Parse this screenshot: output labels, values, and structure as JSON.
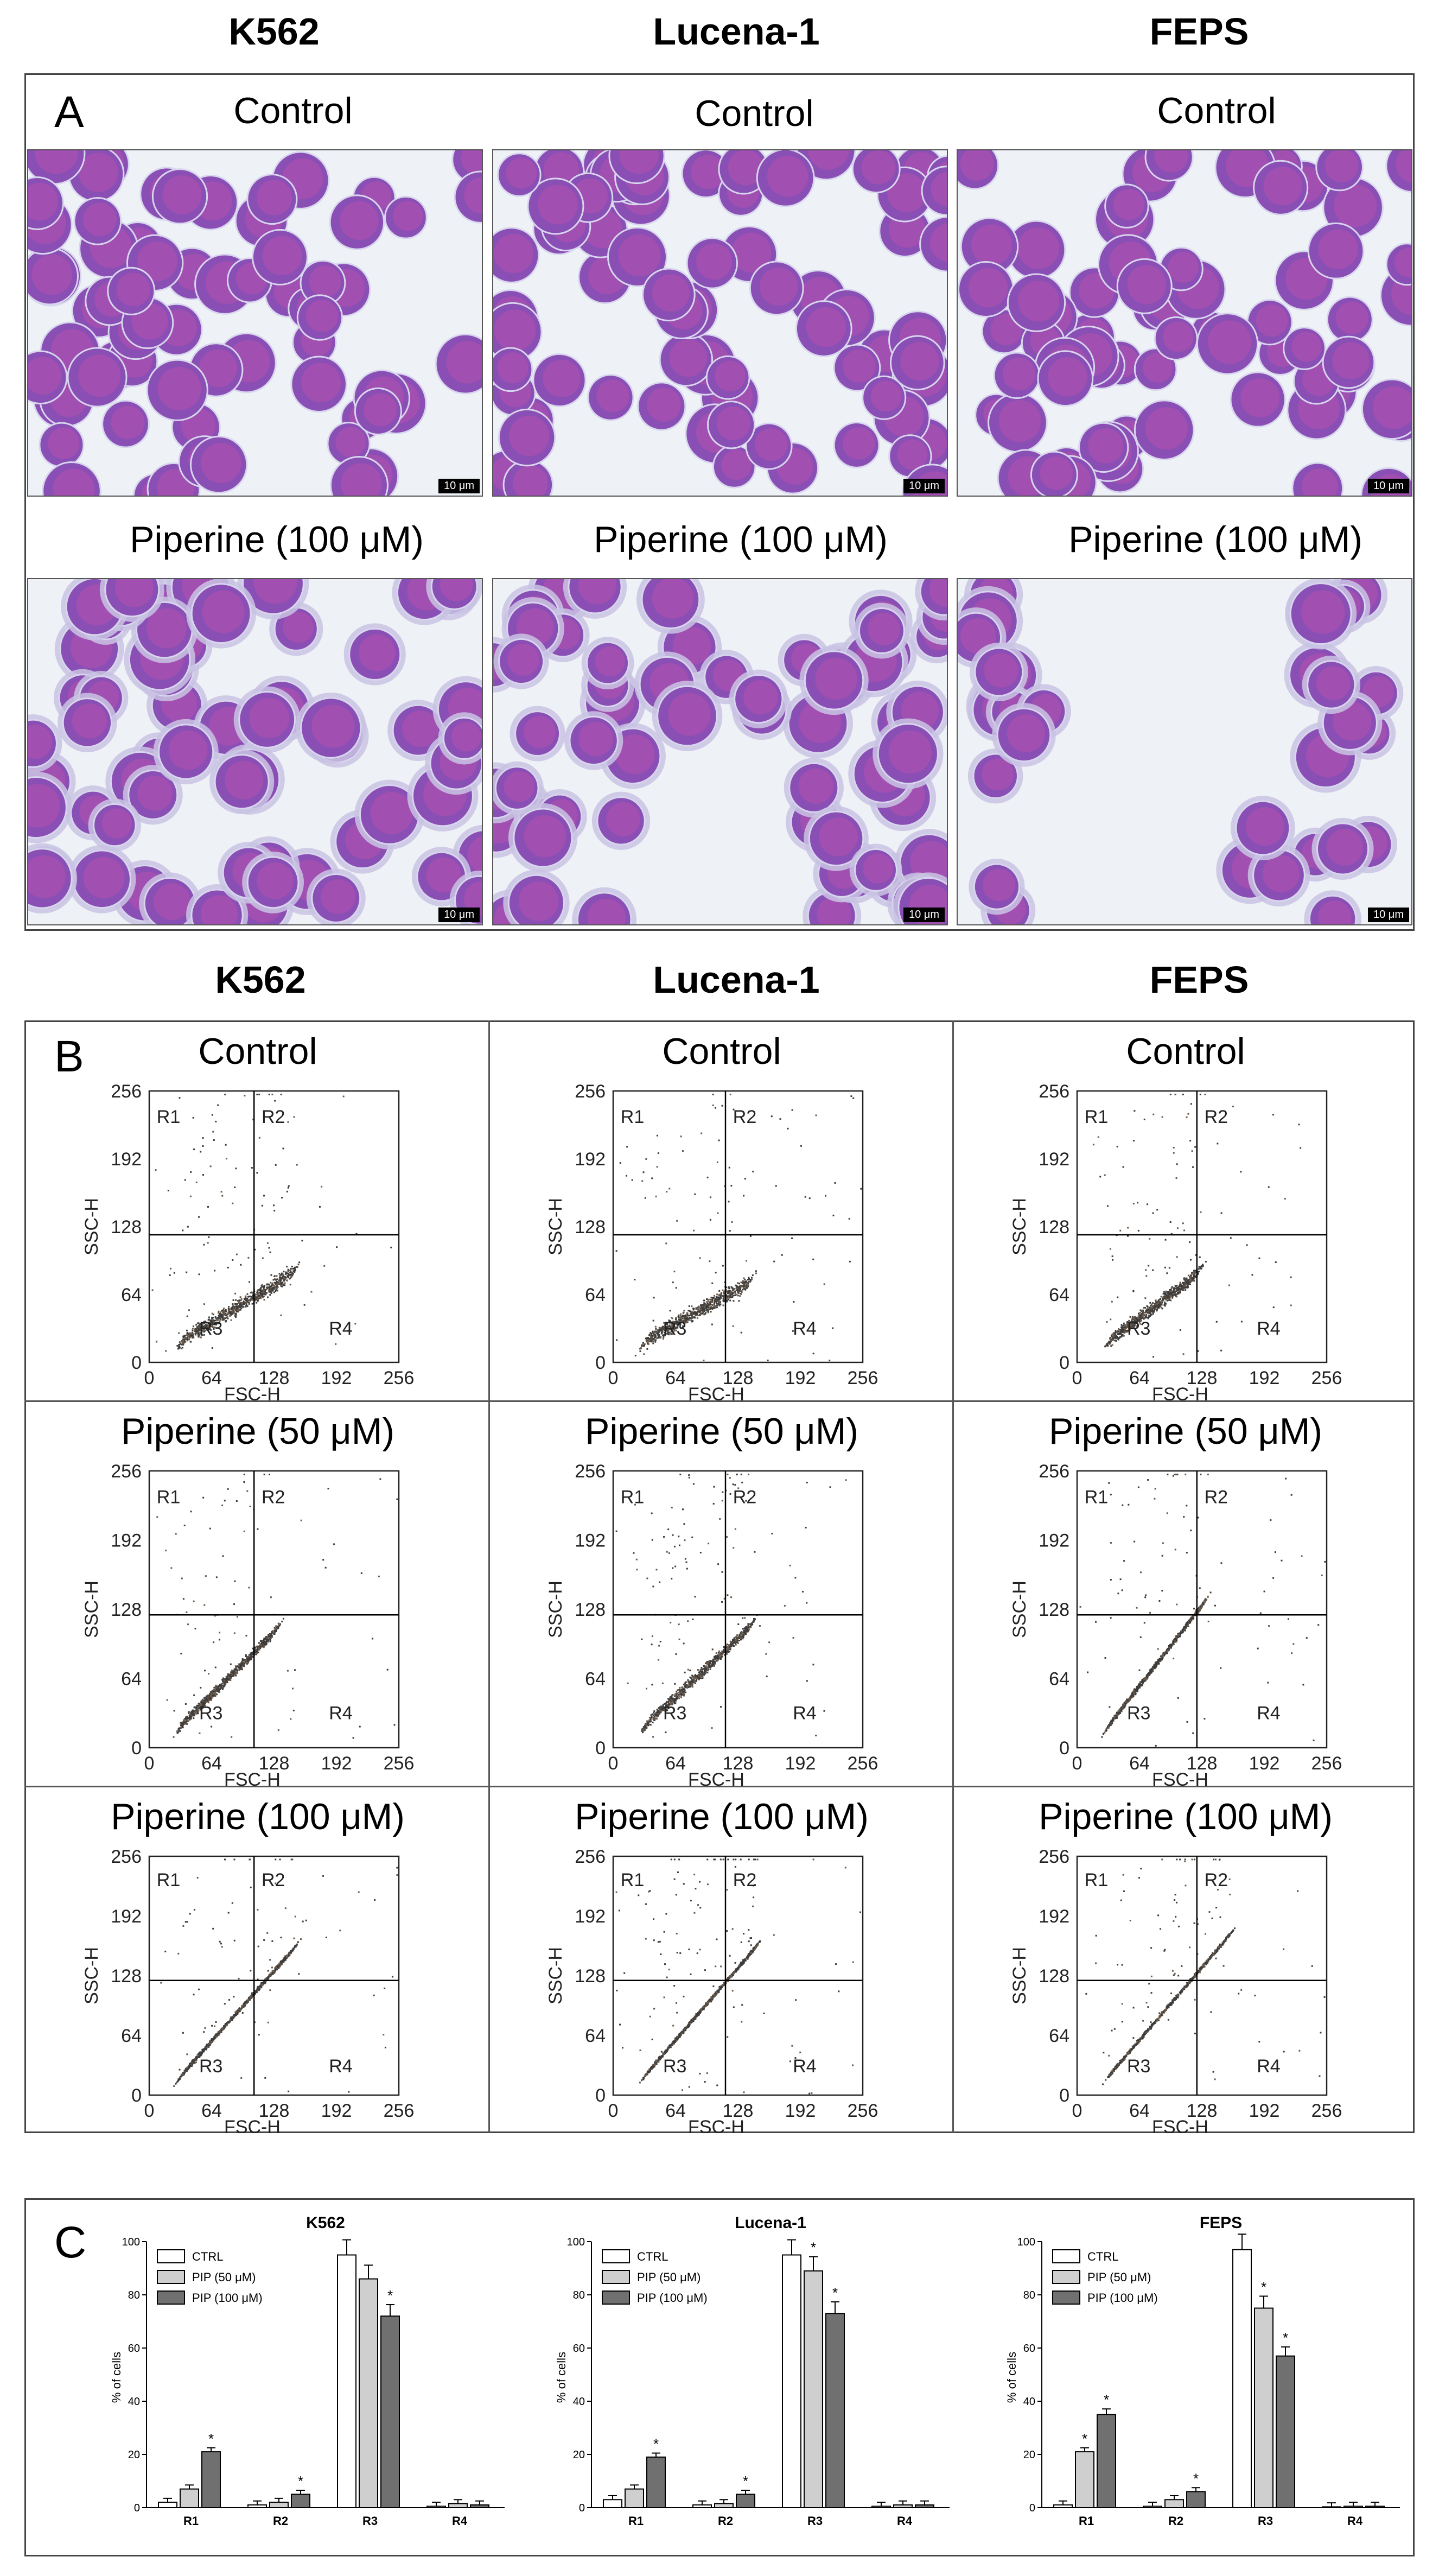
{
  "panel_a": {
    "letter": "A",
    "columns": [
      "K562",
      "Lucena-1",
      "FEPS"
    ],
    "rows": [
      {
        "labels": [
          "Control",
          "Control",
          "Control"
        ]
      },
      {
        "labels": [
          "Piperine (100 μM)",
          "Piperine (100 μM)",
          "Piperine (100 μM)"
        ]
      }
    ],
    "scale_bar": "10 μm"
  },
  "panel_b": {
    "letter": "B",
    "columns": [
      "K562",
      "Lucena-1",
      "FEPS"
    ],
    "rows": [
      {
        "labels": [
          "Control",
          "Control",
          "Control"
        ]
      },
      {
        "labels": [
          "Piperine (50 μM)",
          "Piperine (50 μM)",
          "Piperine (50 μM)"
        ]
      },
      {
        "labels": [
          "Piperine (100 μM)",
          "Piperine (100 μM)",
          "Piperine (100 μM)"
        ]
      }
    ],
    "xlabel": "FSC-H",
    "ylabel": "SSC-H",
    "ticks": [
      "0",
      "64",
      "128",
      "192",
      "256"
    ],
    "regions": [
      "R1",
      "R2",
      "R3",
      "R4"
    ]
  },
  "panel_c": {
    "letter": "C",
    "legend": [
      "CTRL",
      "PIP (50 μM)",
      "PIP (100 μM)"
    ],
    "ylabel": "% of cells",
    "yticks": [
      "0",
      "20",
      "40",
      "60",
      "80",
      "100"
    ],
    "colors": {
      "ctrl": "#ffffff",
      "pip50": "#cfcfcf",
      "pip100": "#707070"
    }
  },
  "chart_data": [
    {
      "type": "bar",
      "title": "K562",
      "categories": [
        "R1",
        "R2",
        "R3",
        "R4"
      ],
      "ylabel": "% of cells",
      "ylim": [
        0,
        100
      ],
      "series": [
        {
          "name": "CTRL",
          "values": [
            2,
            1,
            95,
            0.5
          ]
        },
        {
          "name": "PIP (50 μM)",
          "values": [
            7,
            2,
            86,
            1.5
          ]
        },
        {
          "name": "PIP (100 μM)",
          "values": [
            21,
            5,
            72,
            1
          ]
        }
      ],
      "significant": {
        "PIP (100 μM)": [
          "R1",
          "R2",
          "R3"
        ]
      }
    },
    {
      "type": "bar",
      "title": "Lucena-1",
      "categories": [
        "R1",
        "R2",
        "R3",
        "R4"
      ],
      "ylabel": "% of cells",
      "ylim": [
        0,
        100
      ],
      "series": [
        {
          "name": "CTRL",
          "values": [
            3,
            1,
            95,
            0.5
          ]
        },
        {
          "name": "PIP (50 μM)",
          "values": [
            7,
            1.5,
            89,
            1
          ]
        },
        {
          "name": "PIP (100 μM)",
          "values": [
            19,
            5,
            73,
            1
          ]
        }
      ],
      "significant": {
        "PIP (50 μM)": [
          "R3"
        ],
        "PIP (100 μM)": [
          "R1",
          "R2",
          "R3"
        ]
      }
    },
    {
      "type": "bar",
      "title": "FEPS",
      "categories": [
        "R1",
        "R2",
        "R3",
        "R4"
      ],
      "ylabel": "% of cells",
      "ylim": [
        0,
        100
      ],
      "series": [
        {
          "name": "CTRL",
          "values": [
            1,
            0.5,
            97,
            0.3
          ]
        },
        {
          "name": "PIP (50 μM)",
          "values": [
            21,
            3,
            75,
            0.5
          ]
        },
        {
          "name": "PIP (100 μM)",
          "values": [
            35,
            6,
            57,
            0.5
          ]
        }
      ],
      "significant": {
        "PIP (50 μM)": [
          "R1",
          "R3"
        ],
        "PIP (100 μM)": [
          "R1",
          "R2",
          "R3"
        ]
      }
    }
  ]
}
